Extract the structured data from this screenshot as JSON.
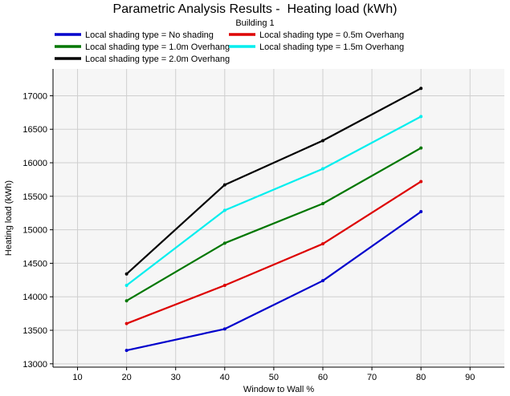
{
  "chart_data": {
    "type": "line",
    "title": "Parametric Analysis Results -  Heating load (kWh)",
    "subtitle": "Building 1",
    "xlabel": "Window to Wall %",
    "ylabel": "Heating load (kWh)",
    "xlim": [
      5,
      97
    ],
    "ylim": [
      12950,
      17400
    ],
    "xticks": [
      10,
      20,
      30,
      40,
      50,
      60,
      70,
      80,
      90
    ],
    "yticks": [
      13000,
      13500,
      14000,
      14500,
      15000,
      15500,
      16000,
      16500,
      17000
    ],
    "grid": true,
    "legend_position": "top",
    "x": [
      20,
      40,
      60,
      80
    ],
    "series": [
      {
        "name": "Local shading type = No shading",
        "color": "#0000cc",
        "values": [
          13200,
          13520,
          14240,
          15270
        ]
      },
      {
        "name": "Local shading type = 0.5m Overhang",
        "color": "#dd0000",
        "values": [
          13600,
          14170,
          14790,
          15720
        ]
      },
      {
        "name": "Local shading type = 1.0m Overhang",
        "color": "#007700",
        "values": [
          13940,
          14800,
          15390,
          16220
        ]
      },
      {
        "name": "Local shading type = 1.5m Overhang",
        "color": "#00eeee",
        "values": [
          14170,
          15290,
          15910,
          16690
        ]
      },
      {
        "name": "Local shading type = 2.0m Overhang",
        "color": "#000000",
        "values": [
          14340,
          15670,
          16330,
          17110
        ]
      }
    ]
  }
}
